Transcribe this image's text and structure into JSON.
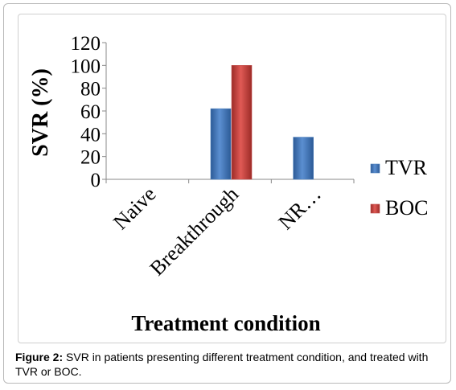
{
  "chart_data": {
    "type": "bar",
    "title": "",
    "xlabel": "Treatment condition",
    "ylabel": "SVR (%)",
    "categories": [
      "Naive",
      "Breakthrough",
      "NR…"
    ],
    "series": [
      {
        "name": "TVR",
        "values": [
          0,
          62,
          37
        ]
      },
      {
        "name": "BOC",
        "values": [
          0,
          100,
          0
        ]
      }
    ],
    "yticks": [
      "0",
      "20",
      "40",
      "60",
      "80",
      "100",
      "120"
    ],
    "ylim": [
      0,
      120
    ],
    "grid": false,
    "legend": "right"
  },
  "colors": {
    "TVR": "#4f81bd",
    "BOC": "#c0504d"
  },
  "caption": {
    "label": "Figure 2:",
    "text": " SVR in patients presenting different treatment condition, and treated with TVR or BOC."
  }
}
